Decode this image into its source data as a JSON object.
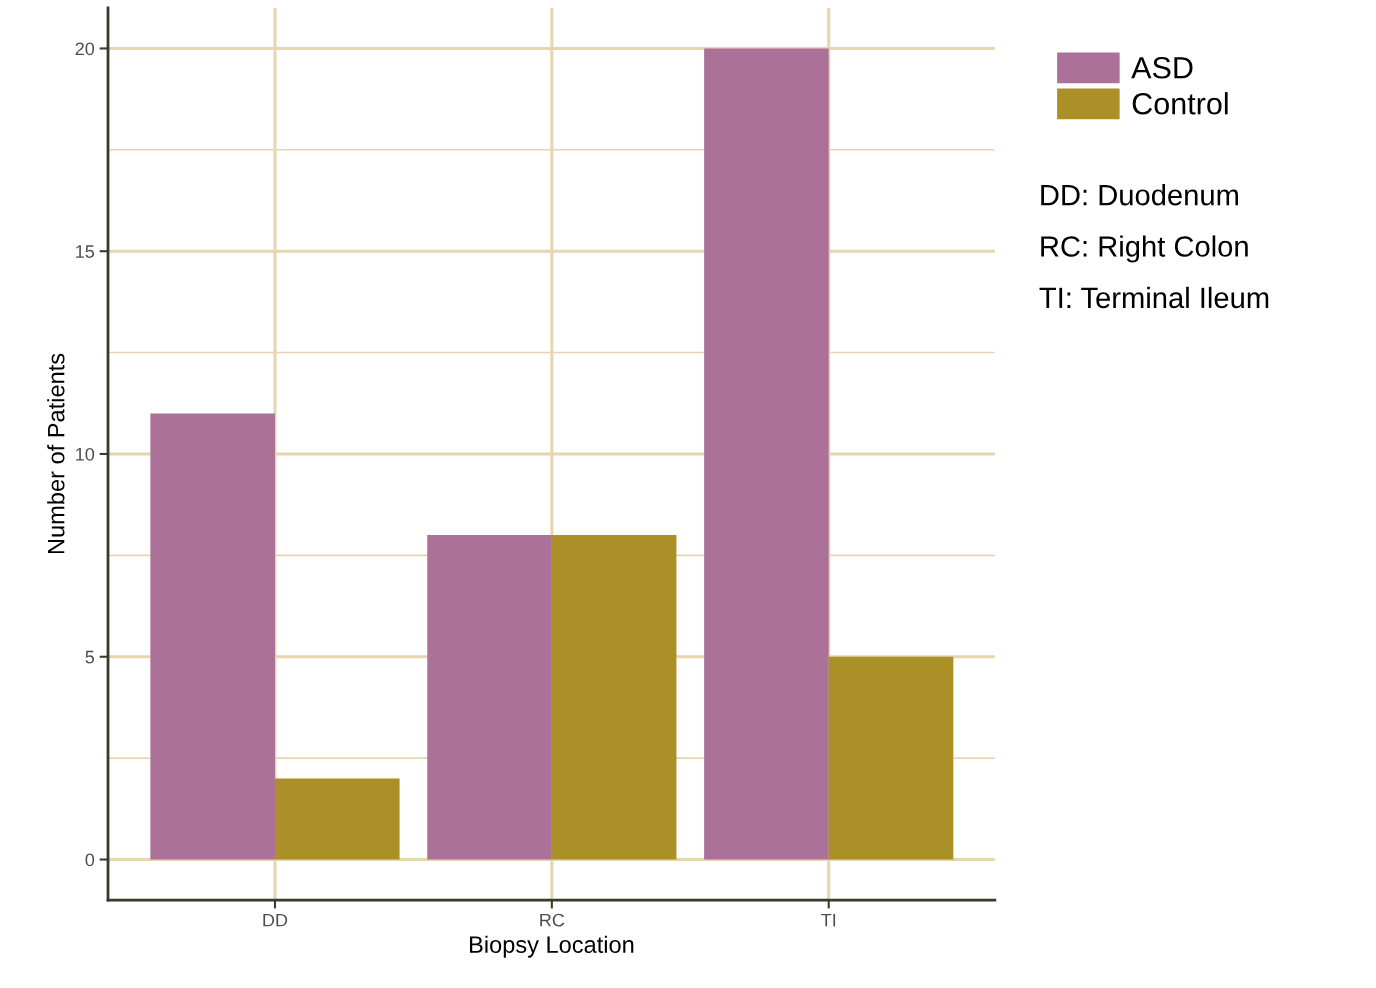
{
  "chart_data": {
    "type": "bar",
    "xlabel": "Biopsy Location",
    "ylabel": "Number of Patients",
    "categories": [
      "DD",
      "RC",
      "TI"
    ],
    "series": [
      {
        "name": "ASD",
        "color": "#ab7198",
        "values": [
          11,
          8,
          20
        ]
      },
      {
        "name": "Control",
        "color": "#ab8f27",
        "values": [
          2,
          8,
          5
        ]
      }
    ],
    "ylim": [
      -1,
      21
    ],
    "yticks": [
      0,
      {
        "value": 2.5,
        "label": null
      },
      5,
      {
        "value": 7.5,
        "label": null
      },
      10,
      {
        "value": 12.5,
        "label": null
      },
      15,
      {
        "value": 17.5,
        "label": null
      },
      20
    ],
    "grid": true,
    "legend": "top right",
    "annotations": [
      "DD: Duodenum",
      "RC: Right Colon",
      "TI: Terminal Ileum"
    ]
  }
}
